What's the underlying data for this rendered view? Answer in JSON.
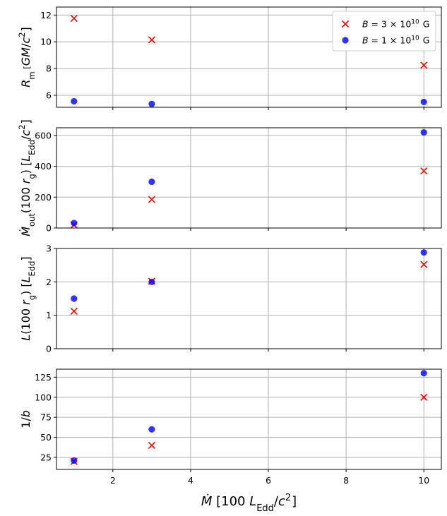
{
  "chart_data": [
    {
      "type": "scatter",
      "ylabel": "R_m [GM/c^2]",
      "ylim": [
        5.1,
        12.6
      ],
      "yticks": [
        6,
        8,
        10,
        12
      ],
      "x": [
        1,
        3,
        10
      ],
      "series": [
        {
          "name": "B = 3×10^10 G",
          "marker": "x",
          "color": "#ff0000",
          "values": [
            11.75,
            10.15,
            8.25
          ]
        },
        {
          "name": "B = 1×10^10 G",
          "marker": "o",
          "color": "#0000ff",
          "values": [
            5.55,
            5.35,
            5.5
          ]
        }
      ],
      "legend": "top-right"
    },
    {
      "type": "scatter",
      "ylabel": "Ṁ_out(100 r_g) [L_Edd/c^2]",
      "ylim": [
        0,
        650
      ],
      "yticks": [
        0,
        200,
        400,
        600
      ],
      "x": [
        1,
        3,
        10
      ],
      "series": [
        {
          "name": "B = 3×10^10 G",
          "marker": "x",
          "color": "#ff0000",
          "values": [
            20,
            185,
            370
          ]
        },
        {
          "name": "B = 1×10^10 G",
          "marker": "o",
          "color": "#0000ff",
          "values": [
            32,
            300,
            620
          ]
        }
      ]
    },
    {
      "type": "scatter",
      "ylabel": "L(100 r_g) [L_Edd]",
      "ylim": [
        0,
        3
      ],
      "yticks": [
        0,
        1,
        2,
        3
      ],
      "x": [
        1,
        3,
        10
      ],
      "series": [
        {
          "name": "B = 3×10^10 G",
          "marker": "x",
          "color": "#ff0000",
          "values": [
            1.12,
            2.02,
            2.52
          ]
        },
        {
          "name": "B = 1×10^10 G",
          "marker": "o",
          "color": "#0000ff",
          "values": [
            1.5,
            2.0,
            2.88
          ]
        }
      ]
    },
    {
      "type": "scatter",
      "ylabel": "1/b",
      "xlabel": "Ṁ [100 L_Edd/c^2]",
      "ylim": [
        10,
        135
      ],
      "yticks": [
        25,
        50,
        75,
        100,
        125
      ],
      "xlim": [
        0.55,
        10.45
      ],
      "xticks": [
        2,
        4,
        6,
        8,
        10
      ],
      "x": [
        1,
        3,
        10
      ],
      "series": [
        {
          "name": "B = 3×10^10 G",
          "marker": "x",
          "color": "#ff0000",
          "values": [
            20,
            40,
            100
          ]
        },
        {
          "name": "B = 1×10^10 G",
          "marker": "o",
          "color": "#0000ff",
          "values": [
            21,
            60,
            130
          ]
        }
      ]
    }
  ]
}
